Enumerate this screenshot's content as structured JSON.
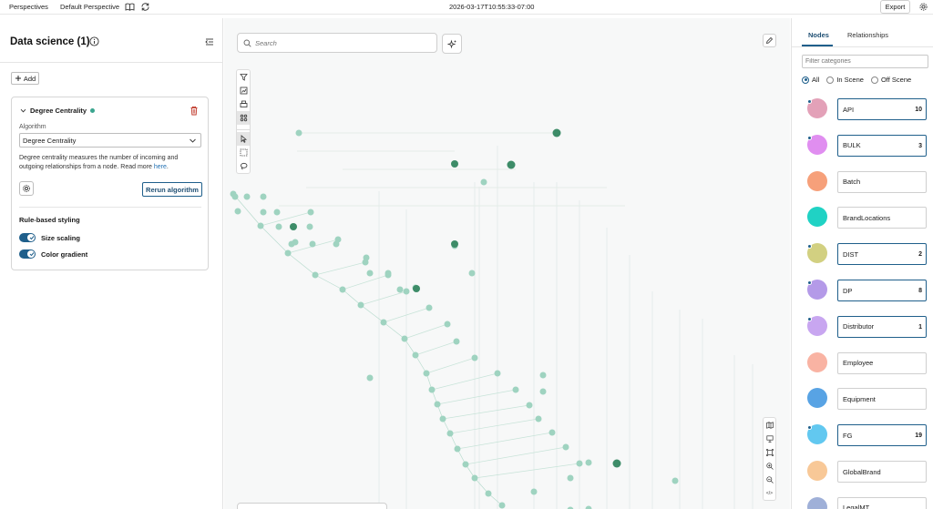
{
  "topbar": {
    "perspectives": "Perspectives",
    "perspective_name": "Default Perspective",
    "timestamp": "2026-03-17T10:55:33-07:00",
    "export_label": "Export"
  },
  "left_panel": {
    "title": "Data science (1)",
    "add_label": "Add",
    "algorithm_card": {
      "name": "Degree Centrality",
      "algorithm_label": "Algorithm",
      "algorithm_value": "Degree Centrality",
      "description": "Degree centrality measures the number of incoming and outgoing relationships from a node. Read more",
      "link_text": "here",
      "rerun_label": "Rerun algorithm",
      "rule_styling_title": "Rule-based styling",
      "toggles": [
        {
          "label": "Size scaling",
          "on": true
        },
        {
          "label": "Color gradient",
          "on": true
        }
      ]
    }
  },
  "canvas": {
    "search_placeholder": "Search",
    "zoom_label": "</>"
  },
  "right_panel": {
    "tabs": [
      "Nodes",
      "Relationships"
    ],
    "active_tab": "Nodes",
    "filter_placeholder": "Filter categories",
    "radio_options": [
      "All",
      "In Scene",
      "Off Scene"
    ],
    "radio_selected": "All",
    "categories": [
      {
        "name": "API",
        "count": "10",
        "color": "#e3a1b8"
      },
      {
        "name": "BULK",
        "count": "3",
        "color": "#e08ef0"
      },
      {
        "name": "Batch",
        "count": "",
        "color": "#f6a07a"
      },
      {
        "name": "BrandLocations",
        "count": "",
        "color": "#20d2c4"
      },
      {
        "name": "DIST",
        "count": "2",
        "color": "#d2d081"
      },
      {
        "name": "DP",
        "count": "8",
        "color": "#b49ae8"
      },
      {
        "name": "Distributor",
        "count": "1",
        "color": "#c8a6f0"
      },
      {
        "name": "Employee",
        "count": "",
        "color": "#f9b3a3"
      },
      {
        "name": "Equipment",
        "count": "",
        "color": "#58a3e4"
      },
      {
        "name": "FG",
        "count": "19",
        "color": "#62c8f0"
      },
      {
        "name": "GlobalBrand",
        "count": "",
        "color": "#f8c897"
      },
      {
        "name": "LegalMT",
        "count": "",
        "color": "#9fb0d8"
      }
    ]
  },
  "colors": {
    "accent": "#1f5f8b",
    "node_light": "#9fd3c0",
    "node_dark": "#3d8c68"
  }
}
